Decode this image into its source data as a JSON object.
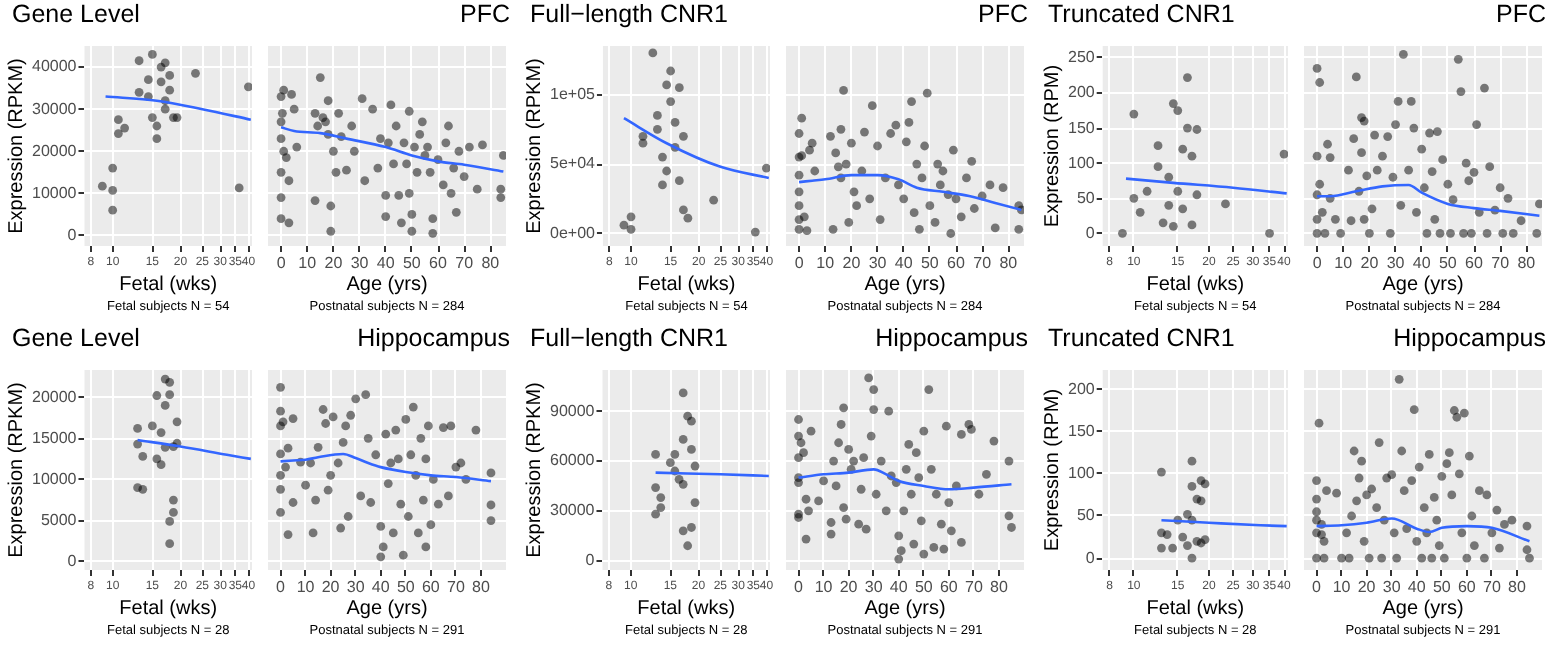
{
  "chart_data": [
    {
      "type": "scatter",
      "title": "Gene Level",
      "xlabel": "Fetal (wks)",
      "ylabel": "Expression (RPKM)",
      "annotations": [
        "Fetal subjects N = 54"
      ],
      "grid": true,
      "log": "x",
      "xlim": [
        7.5,
        41.5
      ],
      "xticks": [
        8,
        10,
        15,
        20,
        25,
        30,
        35,
        40
      ],
      "ylim": [
        -2500,
        45000
      ],
      "yticks": [
        0,
        10000,
        20000,
        30000,
        40000
      ],
      "series": [
        {
          "marker": "circle",
          "color": "#000000",
          "x": [
            9,
            10,
            10,
            10,
            10.6,
            10.6,
            11.3,
            13.1,
            13.1,
            14.4,
            14.4,
            15,
            15,
            15.7,
            15.7,
            16.4,
            16.4,
            17.1,
            17.1,
            17.1,
            17.9,
            17.9,
            18.6,
            19.3,
            23.3,
            36.4,
            40
          ],
          "values": [
            11700,
            16000,
            10700,
            6000,
            27500,
            24200,
            25500,
            34000,
            41500,
            37000,
            33000,
            43000,
            28000,
            23000,
            26000,
            40000,
            36500,
            32000,
            30000,
            41000,
            38000,
            34500,
            28000,
            28000,
            38500,
            11300,
            35300
          ]
        },
        {
          "type": "line",
          "marker": "none",
          "color": "#3366ff",
          "x": [
            9.3,
            15.7,
            25,
            41
          ],
          "values": [
            33000,
            32000,
            30000,
            27500
          ]
        }
      ]
    },
    {
      "type": "scatter",
      "subtitle": "PFC",
      "xlabel": "Age (yrs)",
      "annotations": [
        "Postnatal subjects N = 284"
      ],
      "grid": true,
      "tick_labels": "x",
      "xlim": [
        -5,
        86
      ],
      "xticks": [
        0,
        10,
        20,
        30,
        40,
        50,
        60,
        70,
        80
      ],
      "ylim": [
        -2500,
        45000
      ],
      "yticks": [
        0,
        10000,
        20000,
        30000,
        40000
      ],
      "series": [
        {
          "marker": "circle",
          "color": "#000000",
          "x": [
            0,
            0,
            0,
            0,
            0,
            0,
            0.5,
            1,
            1,
            2,
            3,
            3,
            4,
            5,
            6,
            13,
            13,
            14,
            15,
            16,
            17,
            18,
            18,
            19,
            19,
            20,
            21,
            22,
            23,
            25,
            27,
            28,
            31,
            32,
            35,
            37,
            38,
            40,
            40,
            41,
            42,
            43,
            44,
            45,
            46,
            47,
            48,
            49,
            49,
            50,
            50,
            51,
            52,
            53,
            54,
            55,
            56,
            57,
            58,
            58,
            60,
            62,
            63,
            64,
            65,
            66,
            67,
            68,
            70,
            72,
            75,
            77,
            84,
            84,
            85
          ],
          "values": [
            4000,
            9000,
            15000,
            23000,
            27000,
            33000,
            29000,
            34500,
            20000,
            18500,
            13000,
            3000,
            33500,
            30000,
            21000,
            8300,
            29000,
            26000,
            37500,
            28000,
            27000,
            32000,
            24000,
            7000,
            1000,
            20000,
            15000,
            29000,
            23500,
            15500,
            26000,
            20000,
            32500,
            13000,
            30000,
            16000,
            23000,
            9500,
            4500,
            22000,
            31000,
            17000,
            26000,
            9500,
            3000,
            22000,
            17000,
            10000,
            29500,
            5000,
            1000,
            21000,
            15000,
            24000,
            27000,
            19000,
            21000,
            15000,
            500,
            4000,
            18000,
            12000,
            22000,
            26000,
            10000,
            16000,
            5500,
            20000,
            14000,
            21000,
            11000,
            21500,
            11000,
            9000,
            19000
          ]
        },
        {
          "type": "line",
          "marker": "none",
          "color": "#3366ff",
          "x": [
            0,
            5,
            15,
            25,
            40,
            50,
            60,
            70,
            85
          ],
          "values": [
            25700,
            24800,
            24300,
            23000,
            21000,
            19000,
            17600,
            16800,
            15200
          ]
        }
      ]
    },
    {
      "type": "scatter",
      "title": "Full−length CNR1",
      "xlabel": "Fetal (wks)",
      "ylabel": "Expression (RPKM)",
      "annotations": [
        "Fetal subjects N = 54"
      ],
      "grid": true,
      "log": "x",
      "xlim": [
        7.5,
        41.5
      ],
      "xticks": [
        8,
        10,
        15,
        20,
        25,
        30,
        35,
        40
      ],
      "ylim": [
        -9000,
        135000
      ],
      "yticks": [
        {
          "value": 0,
          "label": "0e+00"
        },
        {
          "value": 50000,
          "label": "5e+04"
        },
        {
          "value": 100000,
          "label": "1e+05"
        }
      ],
      "series": [
        {
          "marker": "circle",
          "color": "#000000",
          "x": [
            9.3,
            10,
            10,
            11.3,
            11.3,
            12.5,
            13.1,
            13.1,
            13.8,
            13.8,
            14.4,
            14.4,
            15,
            15,
            15.7,
            15.7,
            16.4,
            16.4,
            17.1,
            17.1,
            17.9,
            23.3,
            35.7,
            40
          ],
          "values": [
            6000,
            12000,
            3000,
            70000,
            65000,
            130000,
            85000,
            75000,
            55000,
            35000,
            107000,
            45000,
            117000,
            95000,
            80000,
            62000,
            105000,
            38000,
            70000,
            17000,
            11000,
            24000,
            1000,
            47000
          ]
        },
        {
          "type": "line",
          "marker": "none",
          "color": "#3366ff",
          "x": [
            9.3,
            14.4,
            25,
            41
          ],
          "values": [
            83000,
            65000,
            48000,
            40000
          ]
        }
      ]
    },
    {
      "type": "scatter",
      "subtitle": "PFC",
      "xlabel": "Age (yrs)",
      "annotations": [
        "Postnatal subjects N = 284"
      ],
      "grid": true,
      "tick_labels": "x",
      "xlim": [
        -5,
        86
      ],
      "xticks": [
        0,
        10,
        20,
        30,
        40,
        50,
        60,
        70,
        80
      ],
      "ylim": [
        -9000,
        135000
      ],
      "yticks": [
        0,
        50000,
        100000
      ],
      "series": [
        {
          "marker": "circle",
          "color": "#000000",
          "x": [
            0,
            0,
            0,
            0,
            0,
            0,
            0,
            1,
            1,
            2,
            3,
            4,
            5,
            6,
            12,
            13,
            14,
            15,
            16,
            16,
            17,
            18,
            19,
            20,
            21,
            22,
            24,
            25,
            27,
            28,
            30,
            31,
            33,
            35,
            37,
            38,
            40,
            41,
            42,
            43,
            44,
            45,
            46,
            47,
            48,
            49,
            50,
            52,
            53,
            54,
            55,
            57,
            58,
            59,
            60,
            62,
            64,
            66,
            67,
            70,
            73,
            75,
            78,
            84,
            84,
            85
          ],
          "values": [
            72000,
            55000,
            42000,
            30000,
            20000,
            10000,
            3000,
            83000,
            56000,
            12000,
            2000,
            60000,
            65000,
            45000,
            70000,
            3000,
            58000,
            48000,
            75000,
            40000,
            103000,
            50000,
            8000,
            65000,
            30000,
            20000,
            45000,
            73000,
            25000,
            92000,
            63000,
            10000,
            40000,
            72000,
            78000,
            35000,
            25000,
            66000,
            80000,
            95000,
            15000,
            50000,
            3000,
            40000,
            63000,
            101000,
            20000,
            8000,
            50000,
            35000,
            45000,
            28000,
            0,
            60000,
            25000,
            12000,
            40000,
            52000,
            18000,
            27000,
            35000,
            4000,
            33000,
            20000,
            3000,
            17000
          ]
        },
        {
          "type": "line",
          "marker": "none",
          "color": "#3366ff",
          "x": [
            0,
            5,
            10,
            20,
            30,
            38,
            45,
            55,
            65,
            75,
            85
          ],
          "values": [
            37000,
            38000,
            39000,
            42000,
            42000,
            39000,
            33000,
            30000,
            27000,
            22000,
            17000
          ]
        }
      ]
    },
    {
      "type": "scatter",
      "title": "Truncated CNR1",
      "xlabel": "Fetal (wks)",
      "ylabel": "Expression (RPM)",
      "annotations": [
        "Fetal subjects N = 54"
      ],
      "grid": true,
      "log": "x",
      "xlim": [
        7.5,
        41.5
      ],
      "xticks": [
        8,
        10,
        15,
        20,
        25,
        30,
        35,
        40
      ],
      "ylim": [
        -18,
        267
      ],
      "yticks": [
        0,
        50,
        100,
        150,
        200,
        250
      ],
      "series": [
        {
          "marker": "circle",
          "color": "#000000",
          "x": [
            9,
            10,
            10,
            10.6,
            11.3,
            12.5,
            12.5,
            13.1,
            13.8,
            13.8,
            14.4,
            14.4,
            15,
            15,
            15.7,
            15.7,
            16.4,
            16.4,
            17.1,
            17.1,
            17.9,
            17.9,
            23.3,
            35,
            40
          ],
          "values": [
            0,
            170,
            50,
            30,
            60,
            125,
            95,
            15,
            80,
            40,
            185,
            10,
            175,
            60,
            120,
            35,
            222,
            150,
            110,
            12,
            148,
            55,
            42,
            0,
            113
          ]
        },
        {
          "type": "line",
          "marker": "none",
          "color": "#3366ff",
          "x": [
            9.3,
            14.4,
            25,
            41
          ],
          "values": [
            78,
            72,
            65,
            57
          ]
        }
      ]
    },
    {
      "type": "scatter",
      "subtitle": "PFC",
      "xlabel": "Age (yrs)",
      "annotations": [
        "Postnatal subjects N = 284"
      ],
      "grid": true,
      "tick_labels": "x",
      "xlim": [
        -5,
        86
      ],
      "xticks": [
        0,
        10,
        20,
        30,
        40,
        50,
        60,
        70,
        80
      ],
      "ylim": [
        -18,
        267
      ],
      "yticks": [
        0,
        50,
        100,
        150,
        200,
        250
      ],
      "series": [
        {
          "marker": "circle",
          "color": "#000000",
          "x": [
            0,
            0,
            0,
            0,
            0,
            1,
            1,
            2,
            3,
            4,
            5,
            5,
            7,
            9,
            12,
            13,
            14,
            15,
            16,
            17,
            17,
            18,
            18,
            19,
            20,
            21,
            22,
            23,
            25,
            27,
            28,
            29,
            30,
            31,
            32,
            33,
            35,
            36,
            37,
            38,
            40,
            41,
            42,
            43,
            44,
            45,
            46,
            47,
            48,
            50,
            51,
            52,
            54,
            55,
            56,
            57,
            58,
            59,
            60,
            61,
            62,
            64,
            65,
            66,
            68,
            70,
            71,
            73,
            75,
            78,
            84,
            85
          ],
          "values": [
            235,
            110,
            55,
            20,
            0,
            215,
            70,
            30,
            0,
            127,
            108,
            50,
            20,
            0,
            90,
            18,
            135,
            223,
            60,
            165,
            115,
            160,
            20,
            82,
            0,
            35,
            140,
            90,
            110,
            138,
            0,
            80,
            155,
            188,
            40,
            255,
            90,
            188,
            150,
            30,
            120,
            65,
            0,
            143,
            88,
            20,
            145,
            0,
            105,
            70,
            0,
            48,
            248,
            202,
            0,
            100,
            75,
            0,
            87,
            155,
            30,
            207,
            0,
            95,
            33,
            65,
            0,
            50,
            0,
            18,
            0,
            42
          ]
        },
        {
          "type": "line",
          "marker": "none",
          "color": "#3366ff",
          "x": [
            0,
            5,
            15,
            25,
            35,
            40,
            50,
            60,
            70,
            85
          ],
          "values": [
            53,
            53,
            60,
            67,
            69,
            58,
            42,
            36,
            32,
            25
          ]
        }
      ]
    },
    {
      "type": "scatter",
      "title": "Gene Level",
      "xlabel": "Fetal (wks)",
      "ylabel": "Expression (RPKM)",
      "annotations": [
        "Fetal subjects N = 28"
      ],
      "grid": true,
      "log": "x",
      "xlim": [
        7.5,
        41.5
      ],
      "xticks": [
        8,
        10,
        15,
        20,
        25,
        30,
        35,
        40
      ],
      "ylim": [
        -1000,
        23300
      ],
      "yticks": [
        0,
        5000,
        10000,
        15000,
        20000
      ],
      "series": [
        {
          "marker": "circle",
          "color": "#000000",
          "x": [
            12.9,
            12.9,
            12.9,
            13.6,
            13.6,
            15,
            15.7,
            15.7,
            16.4,
            16.4,
            17.1,
            17.1,
            17.1,
            17.9,
            17.9,
            17.9,
            17.9,
            18.6,
            18.6,
            18.6,
            19.3,
            19.3
          ],
          "values": [
            16200,
            14300,
            9000,
            8800,
            12800,
            16500,
            20200,
            12500,
            15700,
            11800,
            22200,
            19000,
            13900,
            21800,
            20300,
            4900,
            2200,
            14000,
            7500,
            6000,
            17000,
            14400
          ]
        },
        {
          "type": "line",
          "marker": "none",
          "color": "#3366ff",
          "x": [
            12.9,
            20,
            32.1,
            41
          ],
          "values": [
            14800,
            14000,
            13000,
            12500
          ]
        }
      ]
    },
    {
      "type": "scatter",
      "subtitle": "Hippocampus",
      "xlabel": "Age (yrs)",
      "annotations": [
        "Postnatal subjects N = 291"
      ],
      "grid": true,
      "tick_labels": "x",
      "xlim": [
        -5,
        90
      ],
      "xticks": [
        0,
        10,
        20,
        30,
        40,
        50,
        60,
        70,
        80
      ],
      "ylim": [
        -1000,
        23300
      ],
      "yticks": [
        0,
        5000,
        10000,
        15000,
        20000
      ],
      "series": [
        {
          "marker": "circle",
          "color": "#000000",
          "x": [
            0,
            0,
            0,
            0,
            0,
            0,
            0,
            1,
            2,
            3,
            3,
            5,
            5,
            8,
            10,
            12,
            13,
            14,
            15,
            17,
            18,
            19,
            20,
            21,
            23,
            24,
            25,
            26,
            27,
            28,
            30,
            32,
            34,
            35,
            36,
            38,
            40,
            40,
            41,
            42,
            43,
            44,
            45,
            46,
            47,
            48,
            49,
            50,
            51,
            52,
            53,
            54,
            55,
            56,
            57,
            58,
            58,
            59,
            60,
            61,
            63,
            65,
            67,
            68,
            70,
            72,
            74,
            78,
            84,
            84,
            84
          ],
          "values": [
            21200,
            18300,
            16500,
            13100,
            10500,
            8800,
            6000,
            17000,
            11500,
            13800,
            3300,
            7200,
            17400,
            12100,
            9300,
            12000,
            3500,
            7500,
            13900,
            18500,
            16800,
            8700,
            10500,
            17600,
            12000,
            4100,
            14500,
            16500,
            5500,
            17800,
            19800,
            8000,
            20300,
            15000,
            7200,
            13000,
            4300,
            600,
            1800,
            15500,
            9500,
            12000,
            3500,
            16000,
            12500,
            7000,
            800,
            17300,
            5500,
            13000,
            18800,
            10500,
            3500,
            15000,
            7500,
            1800,
            12500,
            16500,
            4500,
            10000,
            7000,
            16300,
            8000,
            16500,
            11500,
            12000,
            10000,
            16000,
            10800,
            6900,
            5000
          ]
        },
        {
          "type": "line",
          "marker": "none",
          "color": "#3366ff",
          "x": [
            0,
            5,
            10,
            15,
            25,
            30,
            35,
            40,
            50,
            60,
            70,
            84
          ],
          "values": [
            12200,
            12300,
            12400,
            12700,
            13100,
            12600,
            12000,
            11500,
            10900,
            10500,
            10300,
            9800
          ]
        }
      ]
    },
    {
      "type": "scatter",
      "title": "Full−length CNR1",
      "xlabel": "Fetal (wks)",
      "ylabel": "Expression (RPKM)",
      "annotations": [
        "Fetal subjects N = 28"
      ],
      "grid": true,
      "log": "x",
      "xlim": [
        7.5,
        41.5
      ],
      "xticks": [
        8,
        10,
        15,
        20,
        25,
        30,
        35,
        40
      ],
      "ylim": [
        -5600,
        114800
      ],
      "yticks": [
        0,
        30000,
        60000,
        90000
      ],
      "series": [
        {
          "marker": "circle",
          "color": "#000000",
          "x": [
            12.9,
            12.9,
            12.9,
            13.6,
            13.6,
            15,
            15.7,
            15.7,
            16.4,
            17.1,
            17.1,
            17.1,
            17.1,
            17.9,
            17.9,
            18.6,
            18.6,
            18.6,
            19.3,
            19.3
          ],
          "values": [
            64000,
            44000,
            28000,
            38000,
            32000,
            59000,
            64000,
            54000,
            49000,
            101000,
            73000,
            46000,
            18000,
            87000,
            9000,
            84000,
            67000,
            20000,
            57000,
            35000
          ]
        },
        {
          "type": "line",
          "marker": "none",
          "color": "#3366ff",
          "x": [
            12.9,
            25,
            41
          ],
          "values": [
            53000,
            52000,
            51000
          ]
        }
      ]
    },
    {
      "type": "scatter",
      "subtitle": "Hippocampus",
      "xlabel": "Age (yrs)",
      "annotations": [
        "Postnatal subjects N = 291"
      ],
      "grid": true,
      "tick_labels": "x",
      "xlim": [
        -5,
        90
      ],
      "xticks": [
        0,
        10,
        20,
        30,
        40,
        50,
        60,
        70,
        80
      ],
      "ylim": [
        -5600,
        114800
      ],
      "yticks": [
        0,
        30000,
        60000,
        90000
      ],
      "series": [
        {
          "marker": "circle",
          "color": "#000000",
          "x": [
            0,
            0,
            0,
            0,
            0,
            0,
            0,
            1,
            2,
            3,
            3,
            4,
            5,
            8,
            10,
            13,
            13,
            14,
            15,
            16,
            17,
            18,
            18,
            19,
            20,
            21,
            22,
            24,
            25,
            26,
            27,
            28,
            29,
            30,
            30,
            31,
            33,
            35,
            36,
            37,
            39,
            40,
            40,
            41,
            42,
            43,
            44,
            45,
            46,
            47,
            48,
            49,
            50,
            50,
            52,
            53,
            54,
            55,
            57,
            58,
            59,
            60,
            61,
            63,
            65,
            65,
            68,
            69,
            72,
            75,
            78,
            84,
            84,
            85
          ],
          "values": [
            85000,
            75000,
            62000,
            50000,
            47000,
            28000,
            26000,
            71000,
            65000,
            37000,
            13000,
            30000,
            78000,
            36000,
            48000,
            23000,
            16000,
            60000,
            45000,
            71000,
            82000,
            92000,
            32000,
            25000,
            67000,
            55000,
            60000,
            22000,
            43000,
            62000,
            19000,
            110000,
            75000,
            103000,
            91000,
            40000,
            60000,
            30000,
            90000,
            51000,
            47000,
            15000,
            1000,
            6000,
            30000,
            55000,
            70000,
            40000,
            10000,
            65000,
            50000,
            24000,
            4000,
            78000,
            103000,
            55000,
            8000,
            40000,
            22000,
            7000,
            81000,
            35000,
            18000,
            45000,
            11000,
            76000,
            82000,
            79000,
            40000,
            52000,
            72000,
            60000,
            27000,
            20000
          ]
        },
        {
          "type": "line",
          "marker": "none",
          "color": "#3366ff",
          "x": [
            0,
            10,
            20,
            30,
            35,
            40,
            50,
            60,
            70,
            85
          ],
          "values": [
            50000,
            52000,
            53000,
            55000,
            52000,
            48000,
            45000,
            43000,
            44000,
            46000
          ]
        }
      ]
    },
    {
      "type": "scatter",
      "title": "Truncated CNR1",
      "xlabel": "Fetal (wks)",
      "ylabel": "Expression (RPM)",
      "annotations": [
        "Fetal subjects N = 28"
      ],
      "grid": true,
      "log": "x",
      "xlim": [
        7.5,
        41.5
      ],
      "xticks": [
        8,
        10,
        15,
        20,
        25,
        30,
        35,
        40
      ],
      "ylim": [
        -14,
        223
      ],
      "yticks": [
        0,
        50,
        100,
        150,
        200
      ],
      "series": [
        {
          "marker": "circle",
          "color": "#000000",
          "x": [
            12.9,
            12.9,
            12.9,
            13.6,
            14.3,
            15,
            15.7,
            16.4,
            16.4,
            17.1,
            17.1,
            17.1,
            17.1,
            17.9,
            17.9,
            18.6,
            18.6,
            18.6,
            19.3,
            19.3
          ],
          "values": [
            102,
            30,
            12,
            28,
            12,
            45,
            25,
            52,
            15,
            115,
            85,
            45,
            0,
            70,
            20,
            92,
            68,
            18,
            88,
            22
          ]
        },
        {
          "type": "line",
          "marker": "none",
          "color": "#3366ff",
          "x": [
            12.9,
            20,
            32.1,
            41
          ],
          "values": [
            45,
            42,
            39,
            38
          ]
        }
      ]
    },
    {
      "type": "scatter",
      "subtitle": "Hippocampus",
      "xlabel": "Age (yrs)",
      "annotations": [
        "Postnatal subjects N = 291"
      ],
      "grid": true,
      "tick_labels": "x",
      "xlim": [
        -5,
        90
      ],
      "xticks": [
        0,
        10,
        20,
        30,
        40,
        50,
        60,
        70,
        80
      ],
      "ylim": [
        -14,
        223
      ],
      "yticks": [
        0,
        50,
        100,
        150,
        200
      ],
      "series": [
        {
          "marker": "circle",
          "color": "#000000",
          "x": [
            0,
            0,
            0,
            0,
            0,
            0,
            1,
            2,
            2,
            3,
            3,
            4,
            8,
            10,
            12,
            13,
            14,
            15,
            16,
            17,
            18,
            19,
            20,
            21,
            22,
            24,
            25,
            26,
            27,
            28,
            30,
            31,
            32,
            33,
            34,
            35,
            36,
            38,
            39,
            40,
            41,
            42,
            43,
            44,
            45,
            46,
            47,
            48,
            49,
            50,
            51,
            52,
            53,
            54,
            55,
            56,
            57,
            58,
            59,
            60,
            61,
            62,
            63,
            65,
            67,
            68,
            70,
            72,
            73,
            75,
            78,
            84,
            84,
            85
          ],
          "values": [
            92,
            70,
            55,
            45,
            30,
            0,
            160,
            40,
            28,
            20,
            0,
            80,
            77,
            0,
            30,
            0,
            50,
            127,
            68,
            95,
            115,
            20,
            75,
            0,
            82,
            60,
            137,
            0,
            45,
            95,
            99,
            30,
            0,
            212,
            127,
            80,
            35,
            92,
            176,
            20,
            108,
            0,
            60,
            30,
            123,
            0,
            72,
            45,
            15,
            97,
            0,
            112,
            125,
            75,
            175,
            167,
            100,
            30,
            172,
            0,
            121,
            50,
            15,
            80,
            0,
            75,
            30,
            57,
            12,
            40,
            45,
            38,
            10,
            0
          ]
        },
        {
          "type": "line",
          "marker": "none",
          "color": "#3366ff",
          "x": [
            0,
            10,
            20,
            30,
            40,
            45,
            50,
            60,
            70,
            85
          ],
          "values": [
            38,
            39,
            42,
            47,
            35,
            31,
            36,
            38,
            36,
            20
          ]
        }
      ]
    }
  ]
}
